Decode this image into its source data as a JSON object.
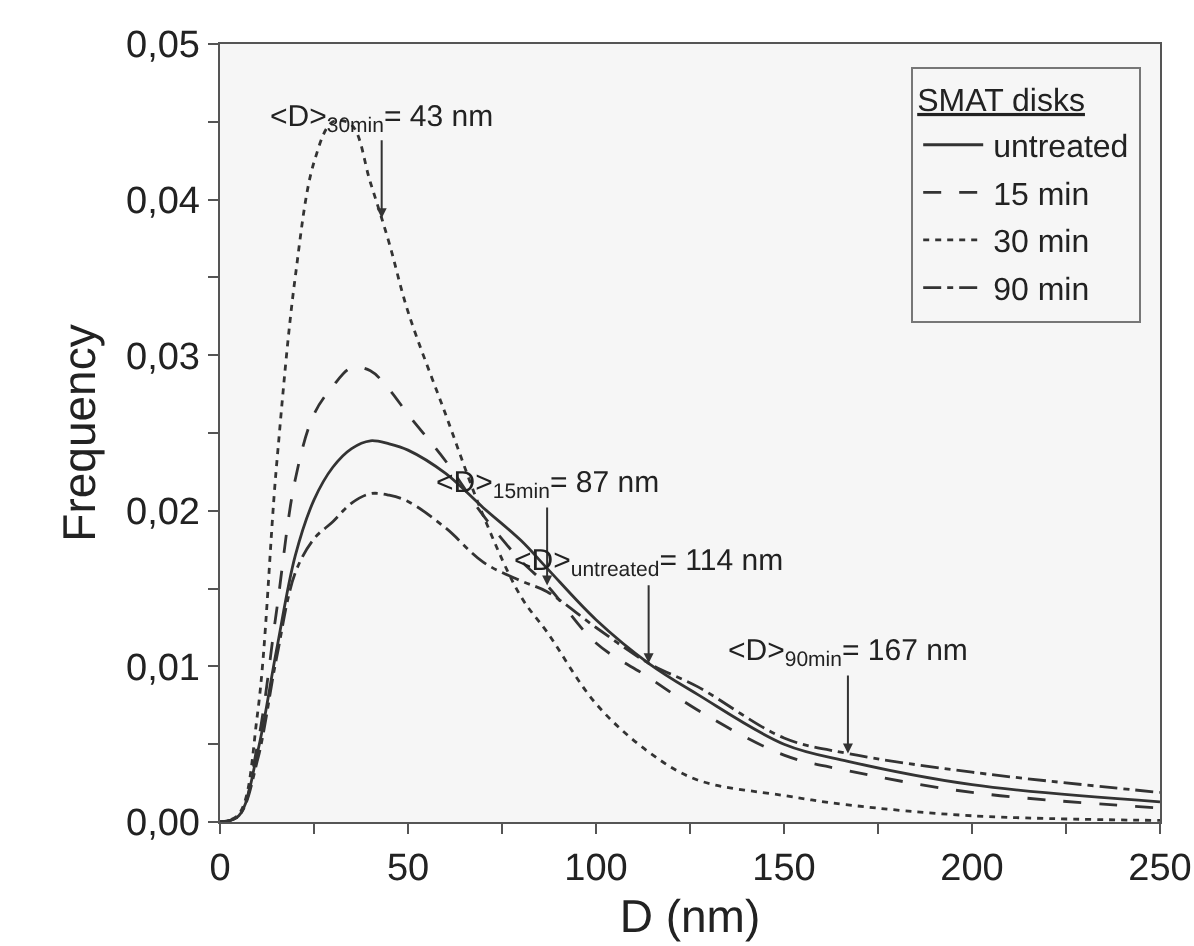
{
  "chart_data": {
    "type": "line",
    "xlabel": "D (nm)",
    "ylabel": "Frequency",
    "legend_title": "SMAT disks",
    "legend": "top right",
    "grid": false,
    "marker": "none",
    "xlim": [
      0,
      250
    ],
    "xticks": [
      0,
      {
        "value": 25,
        "label": null
      },
      50,
      {
        "value": 75,
        "label": null
      },
      100,
      {
        "value": 125,
        "label": null
      },
      150,
      {
        "value": 175,
        "label": null
      },
      200,
      {
        "value": 225,
        "label": null
      },
      250
    ],
    "ylim": [
      0,
      0.05
    ],
    "yticks": [
      {
        "value": 0,
        "label": "0,00"
      },
      {
        "value": 0.005,
        "label": null
      },
      {
        "value": 0.01,
        "label": "0,01"
      },
      {
        "value": 0.015,
        "label": null
      },
      {
        "value": 0.02,
        "label": "0,02"
      },
      {
        "value": 0.025,
        "label": null
      },
      {
        "value": 0.03,
        "label": "0,03"
      },
      {
        "value": 0.035,
        "label": null
      },
      {
        "value": 0.04,
        "label": "0,04"
      },
      {
        "value": 0.045,
        "label": null
      },
      {
        "value": 0.05,
        "label": "0,05"
      }
    ],
    "x": [
      0,
      5,
      10,
      15,
      20,
      25,
      30,
      35,
      40,
      45,
      50,
      60,
      70,
      80,
      87,
      100,
      114,
      127,
      150,
      167,
      200,
      250
    ],
    "series": [
      {
        "name": "untreated",
        "color": "#333333",
        "line_style": "solid",
        "values": [
          0,
          0.0004,
          0.0045,
          0.011,
          0.0171,
          0.0207,
          0.0228,
          0.024,
          0.0245,
          0.0243,
          0.0239,
          0.0224,
          0.0202,
          0.0181,
          0.0163,
          0.013,
          0.0102,
          0.0082,
          0.005,
          0.0039,
          0.0024,
          0.0013
        ]
      },
      {
        "name": "15 min",
        "color": "#333333",
        "line_style": "dashed",
        "values": [
          0,
          0.0004,
          0.005,
          0.0135,
          0.022,
          0.0262,
          0.028,
          0.0292,
          0.029,
          0.0278,
          0.0262,
          0.0232,
          0.0197,
          0.0168,
          0.0152,
          0.0115,
          0.0093,
          0.0072,
          0.0043,
          0.0033,
          0.0019,
          0.0009
        ]
      },
      {
        "name": "30 min",
        "color": "#333333",
        "line_style": "dotted",
        "values": [
          0,
          0.0005,
          0.007,
          0.0228,
          0.035,
          0.0424,
          0.045,
          0.0448,
          0.0411,
          0.0372,
          0.0328,
          0.0262,
          0.0197,
          0.0145,
          0.0122,
          0.0076,
          0.0045,
          0.0027,
          0.0017,
          0.0011,
          0.0004,
          0.0001
        ]
      },
      {
        "name": "90 min",
        "color": "#333333",
        "line_style": "dashdot",
        "values": [
          0,
          0.0004,
          0.004,
          0.0105,
          0.016,
          0.0182,
          0.0193,
          0.0205,
          0.0211,
          0.021,
          0.0206,
          0.0189,
          0.0167,
          0.0155,
          0.0148,
          0.0125,
          0.0102,
          0.0087,
          0.0054,
          0.0044,
          0.0032,
          0.0019
        ]
      }
    ],
    "annotations": [
      {
        "text": "<D>$_{30min}$= 43 nm",
        "x": 43,
        "y": 0.0388
      },
      {
        "text": "<D>$_{15min}$= 87 nm",
        "x": 87,
        "y": 0.0152
      },
      {
        "text": "<D>$_{untreated}$= 114 nm",
        "x": 114,
        "y": 0.0102
      },
      {
        "text": "<D>$_{90min}$= 167 nm",
        "x": 167,
        "y": 0.0044
      }
    ]
  }
}
